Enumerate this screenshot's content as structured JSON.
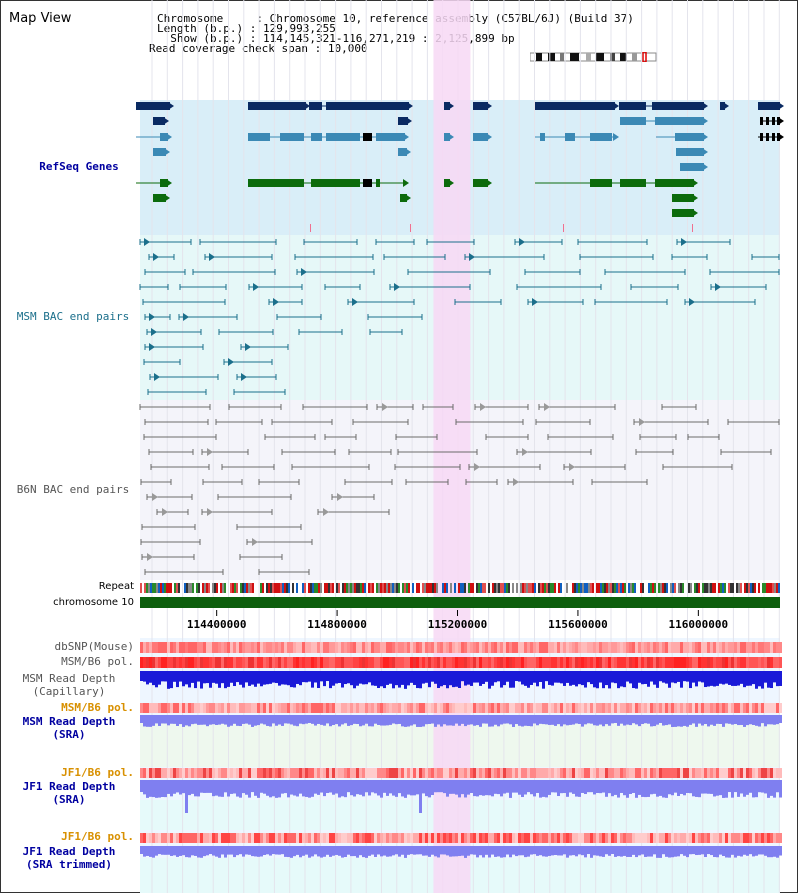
{
  "page": {
    "title": "Map View"
  },
  "info": {
    "chromosome_label": "Chromosome",
    "chromosome_value": "Chromosome 10, reference assembly (C57BL/6J) (Build 37)",
    "length_label": "Length (b.p.)",
    "length_value": "129,993,255",
    "show_label": "Show (b.p.)",
    "show_value": "114,145,321-116,271,219 : 2,125,899 bp",
    "span_label": "Read coverage check span",
    "span_value": "10,000"
  },
  "tracks": {
    "refseq": "RefSeq Genes",
    "msm_bac": "MSM BAC end pairs",
    "b6n_bac": "B6N BAC end pairs",
    "repeat": "Repeat",
    "chromosome": "chromosome 10",
    "dbsnp": "dbSNP(Mouse)",
    "msm_b6_pol": "MSM/B6 pol.",
    "msm_depth_cap_1": "MSM Read Depth",
    "msm_depth_cap_2": "(Capillary)",
    "msm_b6_pol_2": "MSM/B6 pol.",
    "msm_depth_sra_1": "MSM Read Depth",
    "msm_depth_sra_2": "(SRA)",
    "jf1_b6_pol": "JF1/B6 pol.",
    "jf1_depth_sra_1": "JF1 Read Depth",
    "jf1_depth_sra_2": "(SRA)",
    "jf1_b6_pol_2": "JF1/B6 pol.",
    "jf1_depth_trim_1": "JF1 Read Depth",
    "jf1_depth_trim_2": "(SRA trimmed)"
  },
  "axis": {
    "ticks": [
      "114400000",
      "114800000",
      "115200000",
      "115600000",
      "116000000"
    ],
    "tick_values": [
      114400000,
      114800000,
      115200000,
      115600000,
      116000000
    ],
    "range": [
      114145321,
      116271219
    ]
  },
  "highlight": {
    "range": [
      115150000,
      115270000
    ]
  },
  "colors": {
    "refseq_bg": "#d9eef8",
    "msm_bg": "#e6f8f8",
    "b6n_bg": "#f4f4fa",
    "highlight": "#f7d8f5",
    "refseq_dark": "#0a2a62",
    "refseq_mid": "#3b89b5",
    "refseq_green": "#0c6b0c",
    "msm_pair": "#1b6f8b",
    "b6n_pair": "#6b6b6b",
    "chromosome_bar": "#0d5e0d",
    "depth_blue": "#1a1ad8",
    "depth_light": "#7f7ff0",
    "pol_red": "#f24a4a",
    "label_gray": "#555555",
    "label_orange": "#d89000",
    "label_navy": "#0000a0",
    "label_teal": "#1b6f8b"
  }
}
